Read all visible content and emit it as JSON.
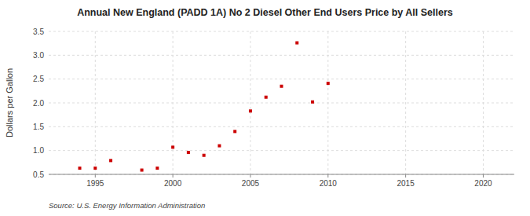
{
  "chart_data": {
    "type": "scatter",
    "title": "Annual New England (PADD 1A) No 2 Diesel Other End Users Price by All Sellers",
    "ylabel": "Dollars per Gallon",
    "annotations": [
      "Source: U.S. Energy Information Administration"
    ],
    "x": [
      1994,
      1995,
      1996,
      1998,
      1999,
      2000,
      2001,
      2002,
      2003,
      2004,
      2005,
      2006,
      2007,
      2008,
      2009,
      2010
    ],
    "values": [
      0.63,
      0.63,
      0.79,
      0.59,
      0.63,
      1.07,
      0.96,
      0.9,
      1.1,
      1.4,
      1.83,
      2.12,
      2.35,
      3.26,
      2.02,
      2.41
    ],
    "color": "#cc0000",
    "marker": "square",
    "xlim": [
      1992,
      2022
    ],
    "ylim": [
      0.5,
      3.5
    ],
    "xticks": [
      1995,
      2000,
      2005,
      2010,
      2015,
      2020
    ],
    "yticks": [
      0.5,
      {
        "value": 1.0,
        "label": "1.0"
      },
      1.5,
      {
        "value": 2.0,
        "label": "2.0"
      },
      2.5,
      {
        "value": 3.0,
        "label": "3.0"
      },
      3.5
    ],
    "grid": true
  }
}
